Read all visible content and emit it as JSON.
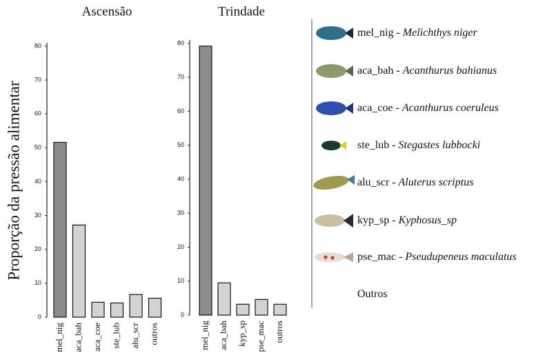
{
  "chart_data": [
    {
      "type": "bar",
      "title": "Ascensão",
      "ylabel": "Proporção da pressão alimentar",
      "categories": [
        "mel_nig",
        "aca_bah",
        "aca_coe",
        "ste_lub",
        "alu_scr",
        "outros"
      ],
      "values": [
        51.6,
        27.2,
        4.4,
        4.2,
        6.7,
        5.6
      ],
      "colors": [
        "#8c8c8c",
        "#d3d3d3",
        "#d3d3d3",
        "#d3d3d3",
        "#d3d3d3",
        "#d3d3d3"
      ],
      "ylim": [
        0,
        81
      ],
      "yticks": [
        0,
        10,
        20,
        30,
        40,
        50,
        60,
        70,
        80
      ]
    },
    {
      "type": "bar",
      "title": "Trindade",
      "categories": [
        "mel_nig",
        "aca_bah",
        "kyp_sp",
        "pse_mac",
        "outros"
      ],
      "values": [
        79.2,
        9.5,
        3.2,
        4.6,
        3.2
      ],
      "colors": [
        "#8c8c8c",
        "#d3d3d3",
        "#d3d3d3",
        "#d3d3d3",
        "#d3d3d3"
      ],
      "ylim": [
        0,
        81
      ],
      "yticks": [
        0,
        10,
        20,
        30,
        40,
        50,
        60,
        70,
        80
      ]
    }
  ],
  "legend": {
    "items": [
      {
        "code": "mel_nig -",
        "species": "Melichthys niger"
      },
      {
        "code": "aca_bah -",
        "species": "Acanthurus bahianus"
      },
      {
        "code": "aca_coe -",
        "species": "Acanthurus coeruleus"
      },
      {
        "code": "ste_lub -",
        "species": "Stegastes lubbocki"
      },
      {
        "code": "alu_scr -",
        "species": "Aluterus scriptus"
      },
      {
        "code": "kyp_sp -",
        "species": "Kyphosus_sp"
      },
      {
        "code": "pse_mac -",
        "species": "Pseudupeneus maculatus"
      },
      {
        "code": "Outros"
      }
    ]
  }
}
